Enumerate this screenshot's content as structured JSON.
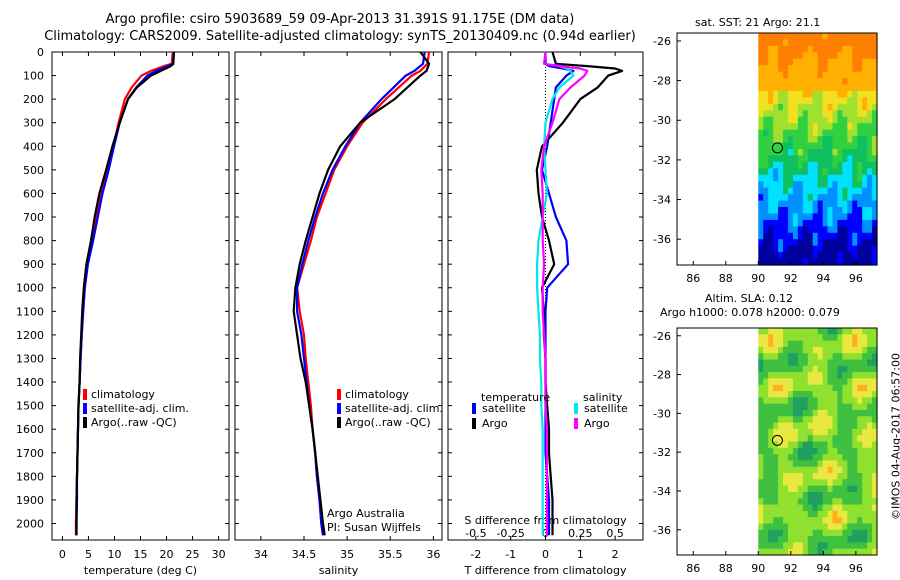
{
  "title_line1": "Argo profile: csiro 5903689_59 09-Apr-2013 31.391S 91.175E (DM data)",
  "title_line2": "Climatology: CARS2009. Satellite-adjusted climatology: synTS_20130409.nc (0.94d earlier)",
  "map1_title": "sat. SST: 21 Argo: 21.1",
  "map2_title_line1": "Altim. SLA: 0.12",
  "map2_title_line2": "Argo h1000: 0.078 h2000: 0.079",
  "stamp": "©IMOS 04-Aug-2017 06:57:00",
  "colors": {
    "climatology": "#ff0000",
    "satellite": "#0000ff",
    "argo": "#000000",
    "salinity_sat": "#00e5ee",
    "salinity_argo": "#ff00ff"
  },
  "chart_data": [
    {
      "type": "line",
      "xlabel": "temperature (deg C)",
      "ylabel": "depth",
      "xlim": [
        -2,
        32
      ],
      "ylim": [
        2070,
        0
      ],
      "xticks": [
        "0",
        "5",
        "10",
        "15",
        "20",
        "25",
        "30"
      ],
      "yticks": [
        "0",
        "100",
        "200",
        "300",
        "400",
        "500",
        "600",
        "700",
        "800",
        "900",
        "1000",
        "1100",
        "1200",
        "1300",
        "1400",
        "1500",
        "1600",
        "1700",
        "1800",
        "1900",
        "2000"
      ],
      "legend": [
        "climatology",
        "satellite-adj. clim.",
        "Argo(..raw -QC)"
      ],
      "legend_position": "lower-middle",
      "depth": [
        0,
        50,
        60,
        80,
        100,
        150,
        200,
        300,
        400,
        500,
        600,
        700,
        800,
        900,
        1000,
        1100,
        1200,
        1300,
        1400,
        1500,
        1600,
        1700,
        1800,
        1900,
        2000,
        2050
      ],
      "series": [
        {
          "name": "climatology",
          "values": [
            21.2,
            21.0,
            19.5,
            17.0,
            15.2,
            13.3,
            12.0,
            10.8,
            9.8,
            8.7,
            7.5,
            6.5,
            5.6,
            4.8,
            4.3,
            4.0,
            3.7,
            3.5,
            3.3,
            3.1,
            3.0,
            2.9,
            2.8,
            2.7,
            2.6,
            2.6
          ]
        },
        {
          "name": "satellite-adj. clim.",
          "values": [
            21.4,
            21.3,
            20.2,
            18.0,
            16.3,
            14.2,
            12.6,
            11.0,
            9.9,
            8.9,
            7.7,
            6.8,
            5.9,
            4.9,
            4.3,
            4.0,
            3.7,
            3.5,
            3.3,
            3.1,
            3.0,
            2.9,
            2.8,
            2.8,
            2.7,
            2.7
          ]
        },
        {
          "name": "Argo(..raw -QC)",
          "values": [
            21.4,
            21.3,
            20.8,
            18.9,
            17.0,
            14.3,
            12.6,
            11.0,
            9.6,
            8.4,
            7.1,
            6.2,
            5.5,
            4.6,
            4.1,
            3.8,
            3.6,
            3.4,
            3.3,
            3.1,
            3.0,
            2.9,
            2.8,
            2.7,
            2.7,
            2.7
          ]
        }
      ]
    },
    {
      "type": "line",
      "xlabel": "salinity",
      "xlim": [
        33.7,
        36.1
      ],
      "ylim": [
        2070,
        0
      ],
      "xticks": [
        "34",
        "34.5",
        "35",
        "35.5",
        "36"
      ],
      "legend": [
        "climatology",
        "satellite-adj. clim.",
        "Argo(..raw -QC)"
      ],
      "legend_position": "lower-middle",
      "annotation_line1": "Argo Australia",
      "annotation_line2": "PI: Susan Wijffels",
      "depth": [
        0,
        50,
        80,
        100,
        200,
        300,
        400,
        500,
        600,
        700,
        800,
        900,
        1000,
        1100,
        1200,
        1300,
        1400,
        1500,
        1600,
        1700,
        1800,
        1900,
        2000,
        2050
      ],
      "series": [
        {
          "name": "climatology",
          "values": [
            35.95,
            35.93,
            35.85,
            35.75,
            35.45,
            35.18,
            35.0,
            34.85,
            34.75,
            34.65,
            34.58,
            34.5,
            34.42,
            34.45,
            34.5,
            34.52,
            34.55,
            34.58,
            34.6,
            34.63,
            34.65,
            34.68,
            34.7,
            34.72
          ]
        },
        {
          "name": "satellite-adj. clim.",
          "values": [
            35.9,
            35.88,
            35.78,
            35.68,
            35.4,
            35.15,
            34.98,
            34.83,
            34.72,
            34.63,
            34.55,
            34.48,
            34.42,
            34.42,
            34.47,
            34.5,
            34.53,
            34.56,
            34.6,
            34.63,
            34.65,
            34.68,
            34.7,
            34.72
          ]
        },
        {
          "name": "Argo(..raw -QC)",
          "values": [
            35.85,
            35.95,
            35.92,
            35.85,
            35.55,
            35.15,
            34.92,
            34.78,
            34.68,
            34.6,
            34.52,
            34.45,
            34.4,
            34.38,
            34.42,
            34.46,
            34.52,
            34.56,
            34.6,
            34.63,
            34.66,
            34.69,
            34.72,
            34.74
          ]
        }
      ]
    },
    {
      "type": "line",
      "xlabel": "T difference from climatology",
      "xlabel_secondary": "S difference from climatology",
      "xlim": [
        -2.8,
        2.8
      ],
      "ylim": [
        2070,
        0
      ],
      "xticks": [
        "-2",
        "-1",
        "0",
        "1",
        "2"
      ],
      "xticks_secondary": [
        "-0.5",
        "-0.25",
        "0",
        "0.25",
        "0.5"
      ],
      "legend_title_temperature": "temperature",
      "legend_title_salinity": "salinity",
      "legend": [
        "satellite",
        "Argo",
        "satellite",
        "Argo"
      ],
      "legend_position": "lower-middle",
      "depth": [
        0,
        50,
        60,
        70,
        80,
        100,
        150,
        200,
        300,
        400,
        500,
        600,
        700,
        800,
        900,
        1000,
        1100,
        1200,
        1300,
        1400,
        1500,
        1600,
        1700,
        1800,
        1900,
        2000,
        2050
      ],
      "series": [
        {
          "name": "temperature satellite",
          "values": [
            0.0,
            0.0,
            0.1,
            0.5,
            0.8,
            0.6,
            0.3,
            0.25,
            0.15,
            0.05,
            -0.1,
            0.1,
            0.3,
            0.6,
            0.65,
            0.05,
            0.0,
            0.0,
            0.0,
            0.0,
            0.0,
            0.0,
            0.0,
            0.05,
            0.1,
            0.1,
            0.1
          ]
        },
        {
          "name": "temperature Argo",
          "values": [
            0.2,
            0.3,
            1.2,
            2.0,
            2.2,
            1.8,
            1.5,
            1.0,
            0.5,
            -0.1,
            -0.25,
            -0.2,
            -0.1,
            0.1,
            0.25,
            -0.1,
            -0.05,
            -0.05,
            0.0,
            0.0,
            0.05,
            0.1,
            0.1,
            0.15,
            0.2,
            0.2,
            0.2
          ]
        },
        {
          "name": "salinity satellite",
          "values": [
            0.0,
            -0.01,
            0.1,
            0.15,
            0.18,
            0.2,
            0.1,
            0.05,
            0.0,
            -0.01,
            0.0,
            0.01,
            -0.02,
            -0.05,
            -0.06,
            -0.06,
            -0.05,
            -0.04,
            -0.04,
            -0.03,
            -0.03,
            -0.02,
            -0.02,
            -0.02,
            -0.02,
            -0.02,
            -0.02
          ]
        },
        {
          "name": "salinity Argo",
          "values": [
            0.0,
            -0.01,
            0.1,
            0.25,
            0.3,
            0.28,
            0.18,
            0.1,
            0.05,
            -0.01,
            -0.03,
            -0.02,
            -0.02,
            -0.02,
            -0.01,
            -0.02,
            -0.02,
            -0.01,
            0.0,
            0.0,
            0.0,
            0.01,
            0.01,
            0.01,
            0.01,
            0.01,
            0.01
          ]
        }
      ]
    },
    {
      "type": "heatmap",
      "title": "sat. SST: 21 Argo: 21.1",
      "xticks": [
        "86",
        "88",
        "90",
        "92",
        "94",
        "96"
      ],
      "yticks": [
        "-26",
        "-28",
        "-30",
        "-32",
        "-34",
        "-36"
      ],
      "xlim": [
        85,
        97.3
      ],
      "ylim": [
        -37.3,
        -25.6
      ],
      "data_lon_range": [
        90,
        97.3
      ],
      "marker": {
        "lon": 91.175,
        "lat": -31.391
      },
      "colormap": [
        "#00009c",
        "#0000ff",
        "#0090ff",
        "#00e0ff",
        "#10c060",
        "#30d040",
        "#a0e030",
        "#f0e020",
        "#ffb000",
        "#ff8000"
      ]
    },
    {
      "type": "heatmap",
      "title": "Altim. SLA: 0.12",
      "xticks": [
        "86",
        "88",
        "90",
        "92",
        "94",
        "96"
      ],
      "yticks": [
        "-26",
        "-28",
        "-30",
        "-32",
        "-34",
        "-36"
      ],
      "xlim": [
        85,
        97.3
      ],
      "ylim": [
        -37.3,
        -25.6
      ],
      "data_lon_range": [
        90,
        97.3
      ],
      "marker": {
        "lon": 91.175,
        "lat": -31.391
      },
      "colormap": [
        "#20a060",
        "#40c040",
        "#90e030",
        "#e8e840",
        "#ffb020"
      ]
    }
  ]
}
